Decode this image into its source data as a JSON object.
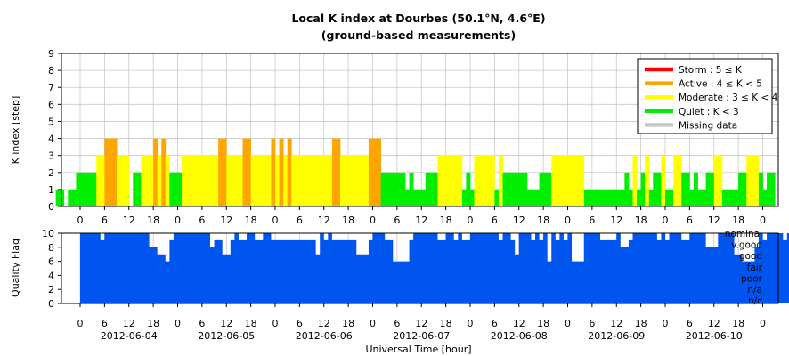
{
  "title_line1": "Local K index at Dourbes (50.1°N, 4.6°E)",
  "title_line2": "(ground-based measurements)",
  "chart_data": [
    {
      "type": "bar",
      "ylabel": "K index [step]",
      "ylim": [
        0,
        9
      ],
      "yticks": [
        "0",
        "1",
        "2",
        "3",
        "4",
        "5",
        "6",
        "7",
        "8",
        "9"
      ],
      "x_hour_ticks": [
        "0",
        "6",
        "12",
        "18",
        "0",
        "6",
        "12",
        "18",
        "0",
        "6",
        "12",
        "18",
        "0",
        "6",
        "12",
        "18",
        "0",
        "6",
        "12",
        "18",
        "0",
        "6",
        "12",
        "18",
        "0",
        "6",
        "12",
        "18",
        "0"
      ],
      "grid": true,
      "legend_position": "top-right",
      "legend": [
        {
          "label": "Storm : 5 ≤ K",
          "color": "#ff0000"
        },
        {
          "label": "Active : 4 ≤ K < 5",
          "color": "#ffa500"
        },
        {
          "label": "Moderate : 3 ≤ K < 4",
          "color": "#ffff00"
        },
        {
          "label": "Quiet : K < 3",
          "color": "#00ee00"
        },
        {
          "label": "Missing data",
          "color": "#c8c8c8"
        }
      ],
      "colors": {
        "quiet": "#00ee00",
        "moderate": "#ffff00",
        "active": "#ffa500",
        "storm": "#ff0000"
      },
      "x_start": "2012-06-03 18:00",
      "bar_interval_hours": 1,
      "k_values": [
        1,
        1,
        0,
        1,
        1,
        2,
        2,
        2,
        2,
        2,
        3,
        3,
        4,
        4,
        4,
        3,
        3,
        3,
        0,
        2,
        2,
        3,
        3,
        3,
        4,
        3,
        4,
        3,
        2,
        2,
        2,
        3,
        3,
        3,
        3,
        3,
        3,
        3,
        3,
        3,
        4,
        4,
        3,
        3,
        3,
        3,
        4,
        4,
        3,
        3,
        3,
        3,
        3,
        4,
        3,
        4,
        3,
        4,
        3,
        3,
        3,
        3,
        3,
        3,
        3,
        3,
        3,
        3,
        4,
        4,
        3,
        3,
        3,
        3,
        3,
        3,
        3,
        4,
        4,
        4,
        2,
        2,
        2,
        2,
        2,
        2,
        1,
        2,
        1,
        1,
        1,
        2,
        2,
        2,
        3,
        3,
        3,
        3,
        3,
        3,
        1,
        2,
        1,
        3,
        3,
        3,
        3,
        3,
        1,
        3,
        2,
        2,
        2,
        2,
        2,
        2,
        1,
        1,
        1,
        2,
        2,
        2,
        3,
        3,
        3,
        3,
        3,
        3,
        3,
        3,
        1,
        1,
        1,
        1,
        1,
        1,
        1,
        1,
        1,
        1,
        2,
        1,
        3,
        1,
        2,
        3,
        1,
        2,
        2,
        3,
        1,
        1,
        3,
        3,
        2,
        2,
        1,
        2,
        1,
        1,
        2,
        2,
        3,
        3,
        1,
        1,
        1,
        1,
        2,
        2,
        3,
        3,
        3,
        2,
        1,
        2,
        2
      ]
    },
    {
      "type": "area",
      "ylabel": "Quality Flag",
      "ylim": [
        0,
        10
      ],
      "yticks": [
        "0",
        "2",
        "4",
        "6",
        "8",
        "10"
      ],
      "flag_labels": [
        "nominal",
        "v.good",
        "good",
        "fair",
        "poor",
        "n/a",
        "n/c"
      ],
      "x_hour_ticks": [
        "0",
        "6",
        "12",
        "18",
        "0",
        "6",
        "12",
        "18",
        "0",
        "6",
        "12",
        "18",
        "0",
        "6",
        "12",
        "18",
        "0",
        "6",
        "12",
        "18",
        "0",
        "6",
        "12",
        "18",
        "0",
        "6",
        "12",
        "18",
        "0"
      ],
      "date_labels": [
        "2012-06-04",
        "2012-06-05",
        "2012-06-06",
        "2012-06-07",
        "2012-06-08",
        "2012-06-09",
        "2012-06-10"
      ],
      "xlabel": "Universal Time [hour]",
      "color": "#0055ee",
      "sample_interval_hours": 1,
      "values": [
        10,
        10,
        10,
        10,
        10,
        9,
        10,
        10,
        10,
        10,
        10,
        10,
        10,
        10,
        10,
        10,
        10,
        8,
        8,
        7,
        7,
        6,
        9,
        10,
        10,
        10,
        10,
        10,
        10,
        10,
        10,
        10,
        8,
        9,
        9,
        7,
        7,
        9,
        10,
        9,
        9,
        10,
        10,
        9,
        9,
        10,
        10,
        9,
        9,
        9,
        9,
        9,
        9,
        9,
        9,
        9,
        9,
        9,
        7,
        10,
        9,
        10,
        9,
        9,
        9,
        9,
        9,
        9,
        7,
        7,
        7,
        9,
        10,
        10,
        10,
        9,
        9,
        6,
        6,
        6,
        6,
        9,
        10,
        10,
        10,
        10,
        10,
        10,
        9,
        9,
        10,
        10,
        9,
        10,
        9,
        9,
        10,
        10,
        10,
        10,
        10,
        10,
        10,
        9,
        10,
        10,
        9,
        7,
        10,
        10,
        10,
        9,
        10,
        9,
        10,
        6,
        10,
        9,
        10,
        9,
        10,
        6,
        6,
        6,
        10,
        10,
        10,
        10,
        9,
        9,
        9,
        9,
        10,
        8,
        8,
        9,
        10,
        10,
        10,
        10,
        10,
        10,
        9,
        10,
        9,
        10,
        10,
        10,
        9,
        9,
        10,
        10,
        10,
        10,
        8,
        8,
        8,
        10,
        10,
        10,
        10,
        7,
        7,
        6,
        6,
        6,
        8,
        10,
        9,
        10,
        10,
        10,
        10,
        9,
        10,
        9,
        10,
        10,
        10,
        10,
        10,
        10,
        10
      ]
    }
  ]
}
